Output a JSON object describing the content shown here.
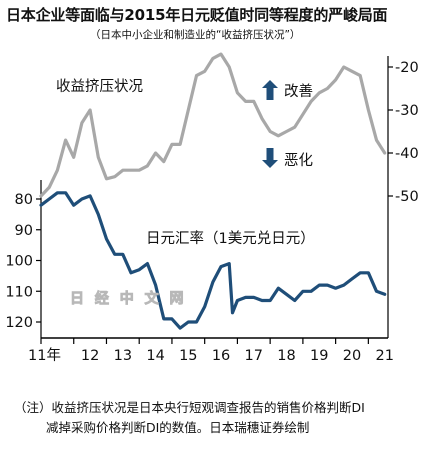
{
  "title": "日本企业等面临与2015年日元贬值时同等程度的严峻局面",
  "subtitle": "（日本中小企业和制造业的“收益挤压状况”）",
  "watermark": "日 经 中 文 网",
  "note": {
    "line1": "（注）收益挤压状况是日本央行短观调查报告的销售价格判断DI",
    "line2": "减掉采购价格判断DI的数值。日本瑞穗证券绘制"
  },
  "colors": {
    "squeeze": "#a8a8a8",
    "yen": "#1f4e79",
    "arrow": "#1f4e79",
    "axis": "#000000"
  },
  "chart_data": {
    "type": "line",
    "x_ticks": [
      "11年",
      "12",
      "13",
      "14",
      "15",
      "16",
      "17",
      "18",
      "19",
      "20",
      "21"
    ],
    "x_range": [
      2011,
      2021.6
    ],
    "right_axis": {
      "ticks": [
        -20,
        -30,
        -40,
        -50
      ],
      "range": [
        -15,
        -52
      ]
    },
    "left_axis": {
      "ticks": [
        80,
        90,
        100,
        110,
        120
      ],
      "range": [
        74,
        124
      ]
    },
    "annotations": {
      "improve": "改善",
      "worsen": "恶化"
    },
    "series": [
      {
        "name": "收益挤压状况",
        "axis": "right",
        "points": [
          [
            2011.0,
            -50
          ],
          [
            2011.25,
            -48
          ],
          [
            2011.5,
            -44
          ],
          [
            2011.75,
            -37
          ],
          [
            2012.0,
            -41
          ],
          [
            2012.25,
            -33
          ],
          [
            2012.5,
            -30
          ],
          [
            2012.75,
            -41
          ],
          [
            2013.0,
            -46
          ],
          [
            2013.25,
            -45.5
          ],
          [
            2013.5,
            -44
          ],
          [
            2013.75,
            -44
          ],
          [
            2014.0,
            -44
          ],
          [
            2014.25,
            -43
          ],
          [
            2014.5,
            -40
          ],
          [
            2014.75,
            -42
          ],
          [
            2015.0,
            -38
          ],
          [
            2015.25,
            -38
          ],
          [
            2015.5,
            -30
          ],
          [
            2015.75,
            -22
          ],
          [
            2016.0,
            -21
          ],
          [
            2016.25,
            -18
          ],
          [
            2016.5,
            -17
          ],
          [
            2016.75,
            -20
          ],
          [
            2017.0,
            -26
          ],
          [
            2017.25,
            -28
          ],
          [
            2017.5,
            -28
          ],
          [
            2017.75,
            -32
          ],
          [
            2018.0,
            -35
          ],
          [
            2018.25,
            -36
          ],
          [
            2018.5,
            -35
          ],
          [
            2018.75,
            -34
          ],
          [
            2019.0,
            -31
          ],
          [
            2019.25,
            -28
          ],
          [
            2019.5,
            -26
          ],
          [
            2019.75,
            -25
          ],
          [
            2020.0,
            -23
          ],
          [
            2020.25,
            -20
          ],
          [
            2020.5,
            -21
          ],
          [
            2020.75,
            -22
          ],
          [
            2021.0,
            -30
          ],
          [
            2021.25,
            -37
          ],
          [
            2021.5,
            -40
          ]
        ]
      },
      {
        "name": "日元汇率（1美元兑日元）",
        "axis": "left",
        "points": [
          [
            2011.0,
            82
          ],
          [
            2011.25,
            80
          ],
          [
            2011.5,
            78
          ],
          [
            2011.75,
            78
          ],
          [
            2012.0,
            82
          ],
          [
            2012.25,
            80
          ],
          [
            2012.5,
            79
          ],
          [
            2012.75,
            85
          ],
          [
            2013.0,
            93
          ],
          [
            2013.25,
            98
          ],
          [
            2013.5,
            98
          ],
          [
            2013.75,
            104
          ],
          [
            2014.0,
            103
          ],
          [
            2014.25,
            101
          ],
          [
            2014.5,
            108
          ],
          [
            2014.75,
            119
          ],
          [
            2015.0,
            119
          ],
          [
            2015.25,
            122
          ],
          [
            2015.5,
            120
          ],
          [
            2015.75,
            120
          ],
          [
            2016.0,
            115
          ],
          [
            2016.25,
            107
          ],
          [
            2016.5,
            102
          ],
          [
            2016.75,
            101
          ],
          [
            2016.85,
            117
          ],
          [
            2017.0,
            113
          ],
          [
            2017.25,
            112
          ],
          [
            2017.5,
            112
          ],
          [
            2017.75,
            113
          ],
          [
            2018.0,
            113
          ],
          [
            2018.25,
            109
          ],
          [
            2018.5,
            111
          ],
          [
            2018.75,
            113
          ],
          [
            2019.0,
            110
          ],
          [
            2019.25,
            110
          ],
          [
            2019.5,
            108
          ],
          [
            2019.75,
            108
          ],
          [
            2020.0,
            109
          ],
          [
            2020.25,
            108
          ],
          [
            2020.5,
            106
          ],
          [
            2020.75,
            104
          ],
          [
            2021.0,
            104
          ],
          [
            2021.25,
            110
          ],
          [
            2021.5,
            111
          ]
        ]
      }
    ]
  }
}
